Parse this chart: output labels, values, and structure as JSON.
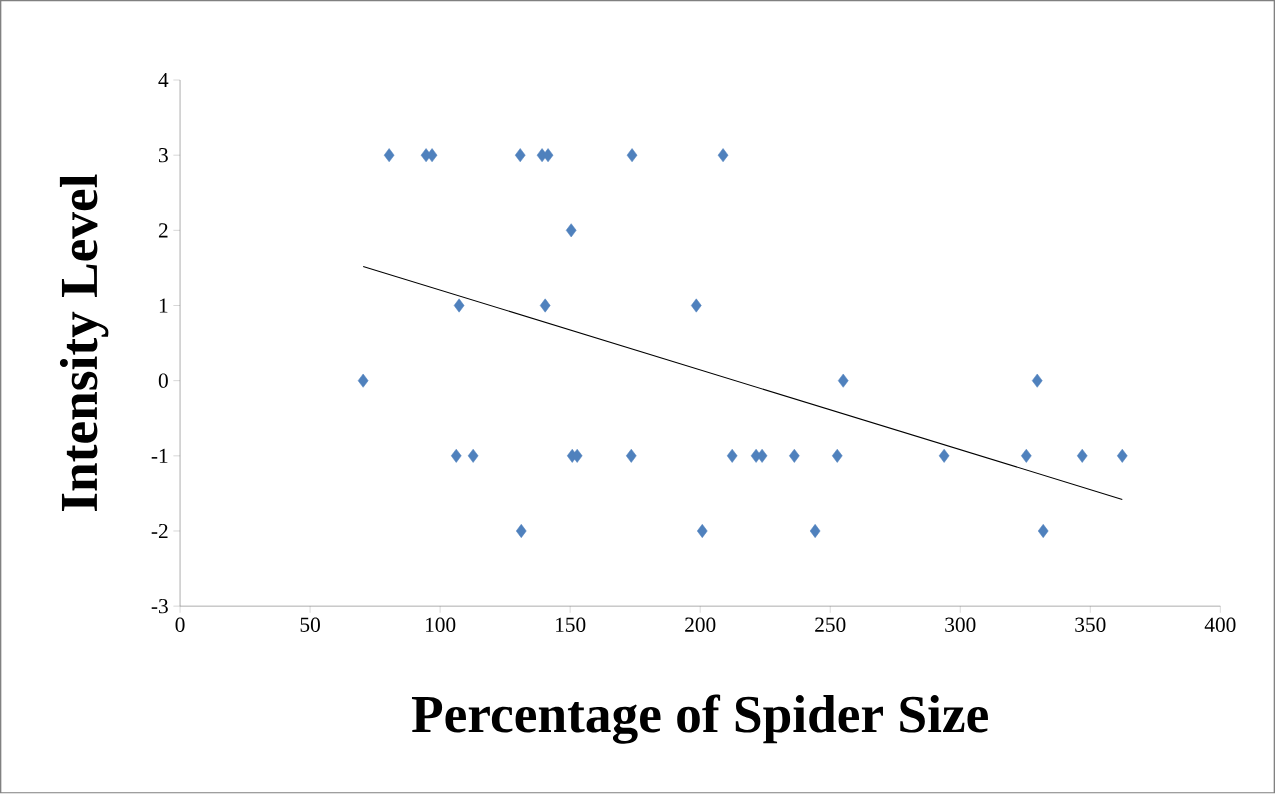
{
  "chart_data": {
    "type": "scatter",
    "xlabel": "Percentage of Spider Size",
    "ylabel": "Intensity Level",
    "xlim": [
      0,
      400
    ],
    "ylim": [
      -3,
      4
    ],
    "xticks": [
      0,
      50,
      100,
      150,
      200,
      250,
      300,
      350,
      400
    ],
    "yticks": [
      -3,
      -2,
      -1,
      0,
      1,
      2,
      3,
      4
    ],
    "grid": false,
    "series": [
      {
        "color": "#4f81bd",
        "marker": "diamond",
        "x": [
          80.4,
          94.6,
          96.9,
          130.8,
          139.2,
          141.5,
          173.8,
          208.8,
          150.4,
          107.3,
          140.4,
          198.5,
          70.4,
          255,
          329.6,
          106.2,
          112.7,
          150.8,
          152.7,
          173.5,
          212.3,
          221.5,
          223.8,
          236.2,
          252.7,
          293.8,
          325.4,
          346.9,
          362.3,
          131.2,
          200.8,
          244.2,
          331.9
        ],
        "values": [
          3,
          3,
          3,
          3,
          3,
          3,
          3,
          3,
          2,
          1,
          1,
          1,
          0,
          0,
          0,
          -1,
          -1,
          -1,
          -1,
          -1,
          -1,
          -1,
          -1,
          -1,
          -1,
          -1,
          -1,
          -1,
          -1,
          -2,
          -2,
          -2,
          -2
        ]
      },
      {
        "type": "line",
        "color": "#000000",
        "marker": "none",
        "line_style": "solid",
        "x": [
          70.4,
          362.3
        ],
        "values": [
          1.52,
          -1.58
        ]
      }
    ]
  }
}
